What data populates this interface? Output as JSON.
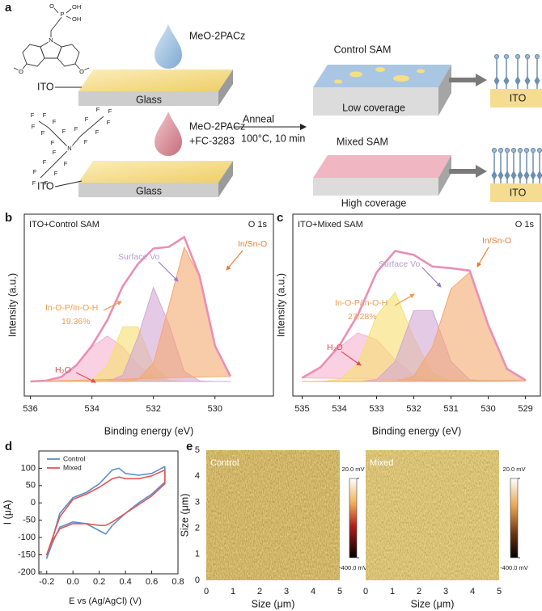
{
  "panel_labels": [
    "a",
    "b",
    "c",
    "d",
    "e"
  ],
  "schematic": {
    "top": {
      "substrate": "ITO",
      "glass": "Glass",
      "solution": [
        "MeO-2PACz"
      ]
    },
    "bottom": {
      "substrate": "ITO",
      "glass": "Glass",
      "solution": [
        "MeO-2PACz",
        "+FC-3283"
      ]
    },
    "process": [
      "Anneal",
      "100°C, 10 min"
    ],
    "control": {
      "title": "Control SAM",
      "coverage": "Low coverage",
      "substrate": "ITO"
    },
    "mixed": {
      "title": "Mixed SAM",
      "coverage": "High coverage",
      "substrate": "ITO"
    },
    "molecule_1_atoms": [
      "O",
      "P",
      "OH",
      "OH",
      "N",
      "O",
      "O"
    ],
    "molecule_2_atoms": [
      "N",
      "F",
      "F",
      "F",
      "F",
      "F",
      "F",
      "F",
      "F",
      "F",
      "F",
      "F",
      "F",
      "F",
      "F",
      "F",
      "F",
      "F",
      "F",
      "F",
      "F",
      "F"
    ]
  },
  "chart_data": [
    {
      "type": "area",
      "title": "ITO+Control SAM",
      "subtitle": "O 1s",
      "x_label": "Binding energy (eV)",
      "y_label": "Intensity (a.u.)",
      "x": [
        536,
        535.5,
        535,
        534.5,
        534,
        533.5,
        533,
        532.5,
        532,
        531.5,
        531,
        530.5,
        530,
        529.5
      ],
      "xlim": [
        536.2,
        528.1
      ],
      "xticks": [
        536,
        534,
        532,
        530
      ],
      "ylim": [
        0,
        100
      ],
      "series": [
        {
          "name": "H₂O",
          "color": "#f5b3cf",
          "values": [
            8,
            8.4,
            10.5,
            17,
            27,
            33,
            27,
            17,
            10.5,
            8.4,
            8,
            8,
            8,
            8
          ]
        },
        {
          "name": "In-O-P/In-O-H",
          "percentage": "19.36%",
          "color": "#f6e06e",
          "values": [
            8,
            8,
            8,
            8,
            8.7,
            16.7,
            38,
            38,
            16.7,
            8.7,
            8,
            8,
            8,
            8
          ]
        },
        {
          "name": "Surface Vo",
          "color": "#d3a6d6",
          "values": [
            8,
            8,
            8,
            8,
            8,
            8,
            11.4,
            32.6,
            59.7,
            39.5,
            13.6,
            8.3,
            8,
            8
          ]
        },
        {
          "name": "In/Sn-O",
          "color": "#f3a870",
          "values": [
            8,
            8,
            8,
            8,
            8,
            8,
            8,
            9.1,
            18.2,
            49.4,
            81.8,
            65.6,
            27.6,
            10.9
          ]
        },
        {
          "color": "#e98fb5",
          "values": [
            8,
            8.4,
            10.5,
            17,
            27.7,
            41.7,
            60.4,
            72.7,
            81.1,
            82,
            87.4,
            65.9,
            27.6,
            10.9
          ]
        }
      ]
    },
    {
      "type": "area",
      "title": "ITO+Mixed SAM",
      "subtitle": "O 1s",
      "x_label": "Binding energy (eV)",
      "y_label": "Intensity (a.u.)",
      "x": [
        535,
        534.5,
        534,
        533.5,
        533,
        532.5,
        532,
        531.5,
        531,
        530.5,
        530,
        529.5,
        529
      ],
      "xlim": [
        535.25,
        528.6
      ],
      "xticks": [
        535,
        534,
        533,
        532,
        531,
        530,
        529
      ],
      "ylim": [
        0,
        100
      ],
      "series": [
        {
          "name": "H₂O",
          "color": "#f5b3cf",
          "values": [
            10,
            15.9,
            26.7,
            34.7,
            31,
            19.8,
            11.6,
            8.7,
            8,
            8,
            8,
            8,
            8
          ]
        },
        {
          "name": "In-O-P/In-O-H",
          "percentage": "27.28%",
          "color": "#f6e06e",
          "values": [
            8,
            8,
            9,
            18,
            44,
            57,
            32,
            12.5,
            8.3,
            8,
            8,
            8,
            8
          ]
        },
        {
          "name": "Surface Vo",
          "color": "#d3a6d6",
          "values": [
            8,
            8,
            8,
            8,
            9,
            19,
            47,
            47,
            19,
            9,
            8,
            8,
            8
          ]
        },
        {
          "name": "In/Sn-O",
          "color": "#f3a870",
          "values": [
            8,
            8,
            8,
            8,
            8,
            8,
            11,
            27,
            59,
            68,
            39,
            15,
            8.7
          ]
        },
        {
          "color": "#e98fb5",
          "values": [
            10,
            15.9,
            27.7,
            44.7,
            68,
            79.8,
            77.6,
            71.2,
            70.3,
            69,
            39,
            15,
            8.7
          ]
        }
      ]
    },
    {
      "type": "line",
      "x_label": "E vs (Ag/AgCl) (V)",
      "y_label": "I (μA)",
      "legend": "upper left",
      "xlim": [
        -0.26,
        0.8
      ],
      "xticks": [
        -0.2,
        {
          "value": 0,
          "label": "0.0"
        },
        0.2,
        0.4,
        0.6,
        0.8
      ],
      "ylim": [
        -205,
        150
      ],
      "yticks": [
        -200,
        -150,
        -100,
        -50,
        0,
        50,
        100
      ],
      "series": [
        {
          "name": "Control",
          "color": "#5b8fc9",
          "x": [
            -0.2,
            -0.1,
            0,
            0.1,
            0.2,
            0.3,
            0.35,
            0.4,
            0.5,
            0.6,
            0.7,
            0.7,
            0.6,
            0.5,
            0.4,
            0.3,
            0.25,
            0.2,
            0.1,
            0,
            -0.1,
            -0.15
          ],
          "values": [
            -160,
            -30,
            15,
            30,
            55,
            95,
            100,
            85,
            80,
            85,
            105,
            60,
            25,
            0,
            -30,
            -65,
            -90,
            -80,
            -60,
            -55,
            -70,
            -110
          ]
        },
        {
          "name": "Mixed",
          "color": "#e0575b",
          "x": [
            -0.2,
            -0.1,
            0,
            0.1,
            0.2,
            0.3,
            0.35,
            0.4,
            0.5,
            0.6,
            0.7,
            0.7,
            0.6,
            0.5,
            0.4,
            0.3,
            0.25,
            0.2,
            0.1,
            0,
            -0.1,
            -0.15
          ],
          "values": [
            -150,
            -40,
            10,
            25,
            45,
            70,
            75,
            70,
            70,
            78,
            95,
            55,
            20,
            -5,
            -30,
            -55,
            -65,
            -65,
            -60,
            -60,
            -75,
            -105
          ]
        }
      ]
    },
    {
      "type": "image",
      "label": "Control",
      "x_label": "Size (μm)",
      "y_label": "Size (μm)",
      "xlim": [
        0,
        5
      ],
      "xticks": [
        0,
        1,
        2,
        3,
        4,
        5
      ],
      "ylim": [
        0,
        5
      ],
      "yticks": [
        0,
        1,
        2,
        3,
        4,
        5
      ],
      "clim": [
        -400,
        20
      ],
      "colorbar_ticks": [
        {
          "value": 20,
          "label": "20.0 mV"
        },
        {
          "value": -400,
          "label": "-400.0 mV"
        }
      ]
    },
    {
      "type": "image",
      "label": "Mixed",
      "x_label": "Size (μm)",
      "xlim": [
        0,
        5
      ],
      "xticks": [
        0,
        1,
        2,
        3,
        4,
        5
      ],
      "clim": [
        -400,
        20
      ],
      "colorbar_ticks": [
        {
          "value": 20,
          "label": "20.0 mV"
        },
        {
          "value": -400,
          "label": "-400.0 mV"
        }
      ]
    }
  ]
}
